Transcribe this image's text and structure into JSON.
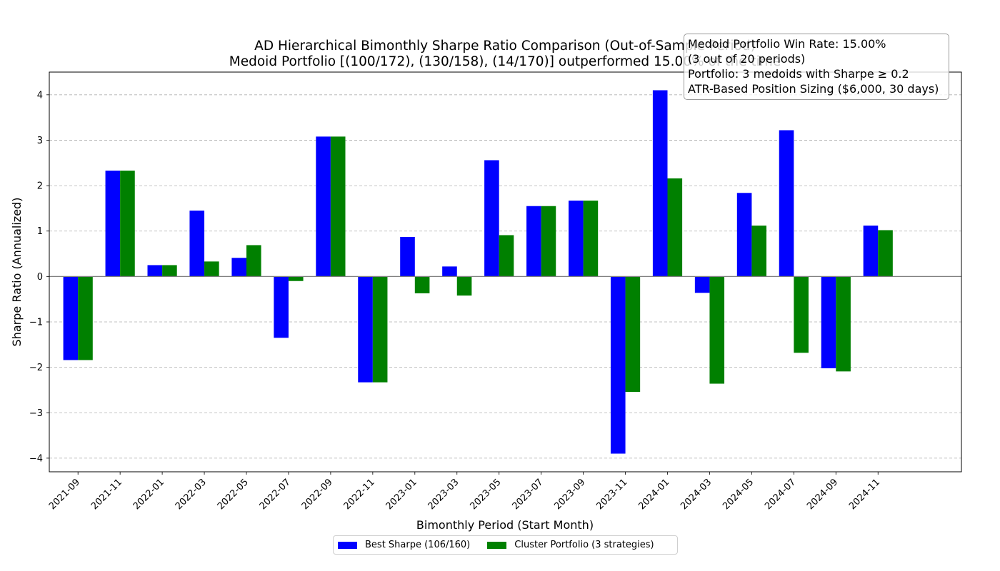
{
  "chart_data": {
    "type": "bar",
    "title": "AD Hierarchical Bimonthly Sharpe Ratio Comparison (Out-of-Sample Period)",
    "subtitle": "Medoid Portfolio [(100/172), (130/158), (14/170)] outperformed 15.00% of the time",
    "xlabel": "Bimonthly Period (Start Month)",
    "ylabel": "Sharpe Ratio (Annualized)",
    "ylim": [
      -4.3,
      4.5
    ],
    "yticks": [
      -4,
      -3,
      -2,
      -1,
      0,
      1,
      2,
      3,
      4
    ],
    "ytick_labels": [
      "−4",
      "−3",
      "−2",
      "−1",
      "0",
      "1",
      "2",
      "3",
      "4"
    ],
    "grid": "y-dashed",
    "legend_position": "bottom-center",
    "categories": [
      "2021-09",
      "2021-11",
      "2022-01",
      "2022-03",
      "2022-05",
      "2022-07",
      "2022-09",
      "2022-11",
      "2023-01",
      "2023-03",
      "2023-05",
      "2023-07",
      "2023-09",
      "2023-11",
      "2024-01",
      "2024-03",
      "2024-05",
      "2024-07",
      "2024-09",
      "2024-11"
    ],
    "series": [
      {
        "name": "Best Sharpe (106/160)",
        "color": "#0000ff",
        "values": [
          -1.84,
          2.33,
          0.25,
          1.45,
          0.41,
          -1.35,
          3.08,
          -2.33,
          0.87,
          0.22,
          2.56,
          1.55,
          1.67,
          -3.9,
          4.1,
          -0.36,
          1.84,
          3.22,
          -2.02,
          1.12
        ]
      },
      {
        "name": "Cluster Portfolio (3 strategies)",
        "color": "#008000",
        "values": [
          -1.84,
          2.33,
          0.25,
          0.33,
          0.69,
          -0.1,
          3.08,
          -2.33,
          -0.37,
          -0.42,
          0.91,
          1.55,
          1.67,
          -2.54,
          2.16,
          -2.36,
          1.12,
          -1.68,
          -2.09,
          1.02
        ]
      }
    ]
  },
  "info_box": {
    "lines": [
      "Medoid Portfolio Win Rate: 15.00%",
      "(3 out of 20 periods)",
      "Portfolio: 3 medoids with Sharpe ≥ 0.2",
      "ATR-Based Position Sizing ($6,000, 30 days)"
    ]
  }
}
